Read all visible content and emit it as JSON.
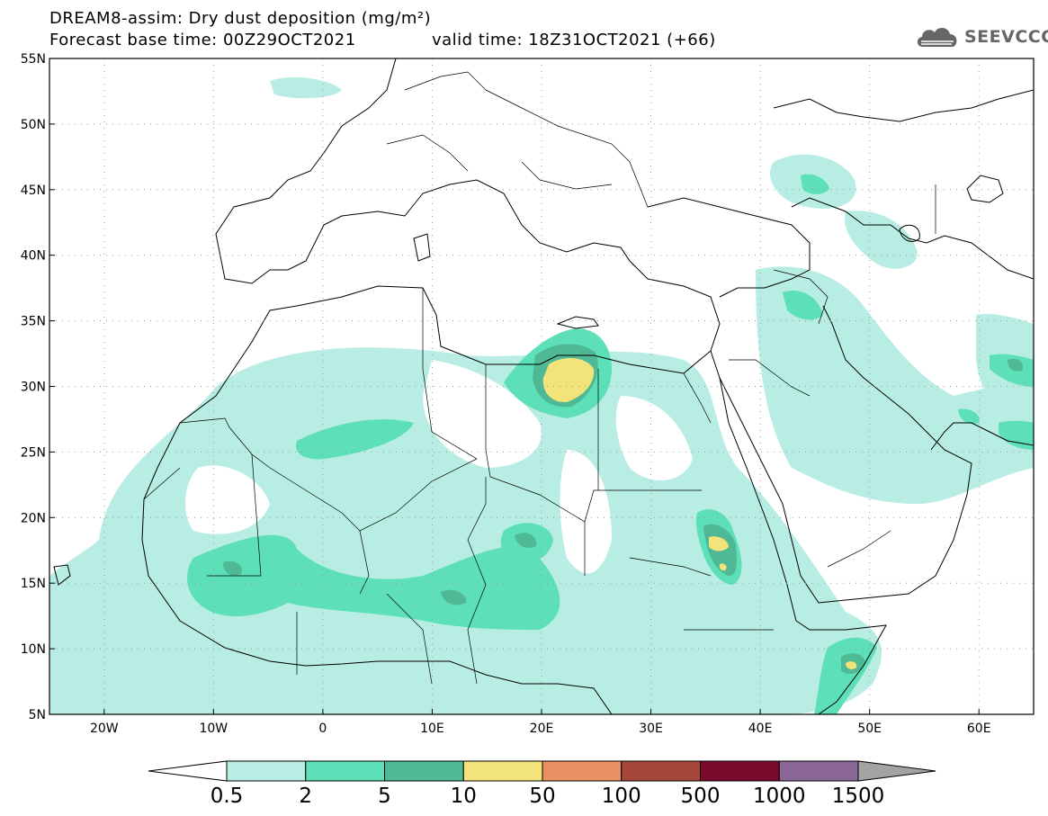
{
  "header": {
    "title": "DREAM8-assim: Dry dust deposition (mg/m²)",
    "base_time": "Forecast base time: 00Z29OCT2021",
    "valid_time": "valid time: 18Z31OCT2021 (+66)"
  },
  "logo": {
    "text": "SEEVCCC",
    "icon": "cloud-icon"
  },
  "map": {
    "lat_labels": [
      "55N",
      "50N",
      "45N",
      "40N",
      "35N",
      "30N",
      "25N",
      "20N",
      "15N",
      "10N",
      "5N"
    ],
    "lon_labels": [
      "20W",
      "10W",
      "0",
      "10E",
      "20E",
      "30E",
      "40E",
      "50E",
      "60E"
    ],
    "lon_range": [
      -25,
      65
    ],
    "lat_range": [
      5,
      55
    ],
    "grid": "dotted"
  },
  "colorbar": {
    "labels": [
      "0.5",
      "2",
      "5",
      "10",
      "50",
      "100",
      "500",
      "1000",
      "1500"
    ],
    "colors": [
      "#ffffff",
      "#b7ede3",
      "#5ddfb8",
      "#4fb894",
      "#f2e47a",
      "#ea9065",
      "#a6473c",
      "#7b0b2c",
      "#8a6796",
      "#a3a3a3"
    ]
  }
}
